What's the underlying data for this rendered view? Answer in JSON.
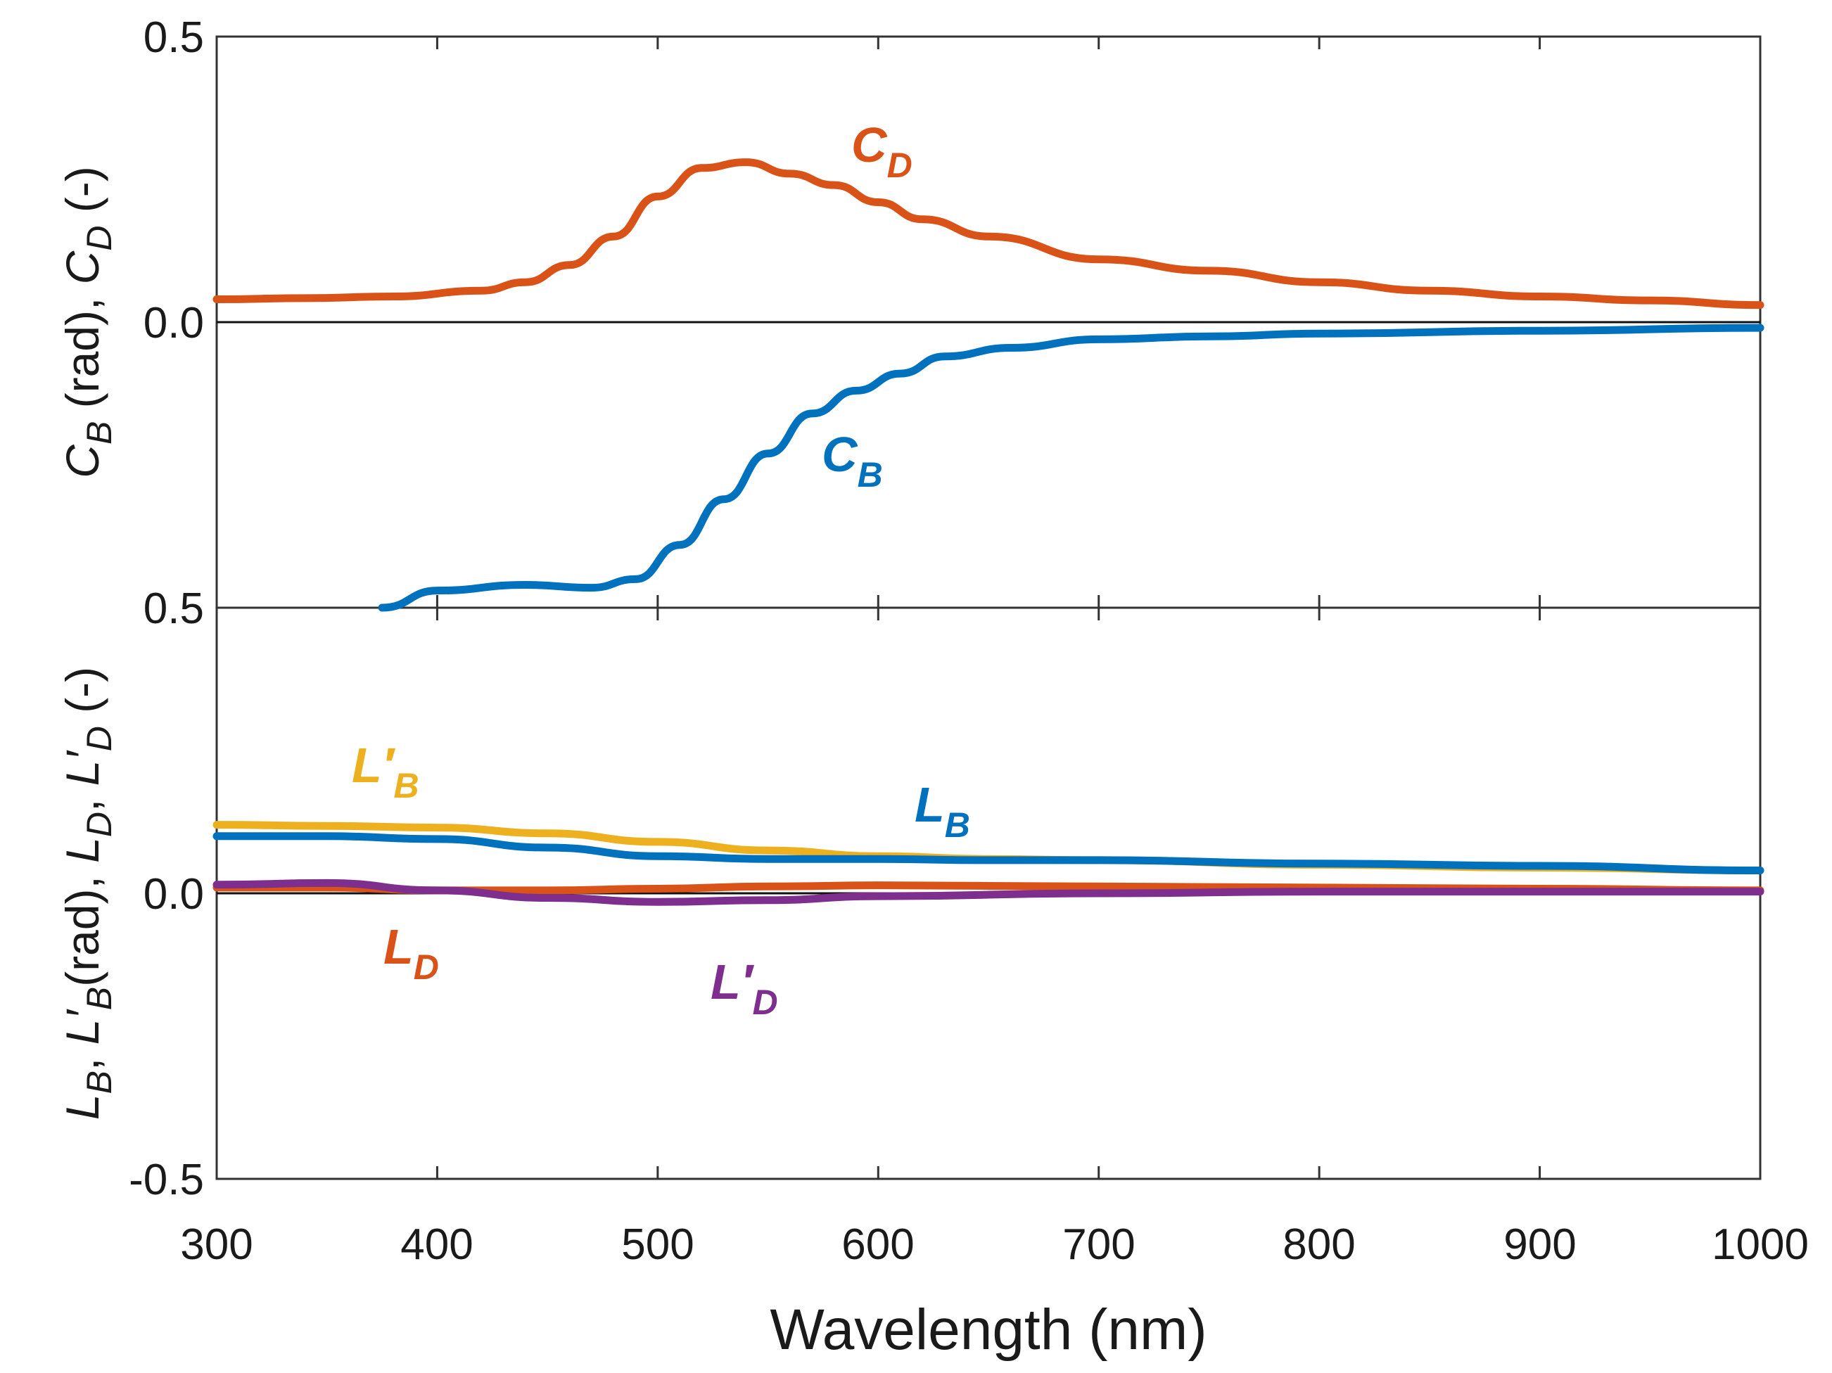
{
  "chart_data": {
    "type": "line",
    "xlabel": "Wavelength (nm)",
    "xlim": [
      300,
      1000
    ],
    "x_ticks": [
      "300",
      "400",
      "500",
      "600",
      "700",
      "800",
      "900",
      "1000"
    ],
    "panels": [
      {
        "name": "top",
        "ylabel": {
          "c": "C",
          "b": "B",
          "rad": " (rad), ",
          "d": "D",
          "dimless": " (-)"
        },
        "ylim": [
          -0.5,
          0.5
        ],
        "y_ticks": [
          "0.5",
          "0.0"
        ],
        "series": [
          {
            "name": "C_D",
            "label": {
              "main": "C",
              "sub": "D"
            },
            "color": "#D95319",
            "x": [
              300,
              340,
              380,
              420,
              440,
              460,
              480,
              500,
              520,
              540,
              560,
              580,
              600,
              620,
              650,
              700,
              750,
              800,
              850,
              900,
              950,
              1000
            ],
            "y": [
              0.04,
              0.042,
              0.045,
              0.055,
              0.07,
              0.1,
              0.15,
              0.22,
              0.27,
              0.28,
              0.26,
              0.24,
              0.21,
              0.18,
              0.15,
              0.11,
              0.09,
              0.07,
              0.055,
              0.045,
              0.038,
              0.03
            ]
          },
          {
            "name": "C_B",
            "label": {
              "main": "C",
              "sub": "B"
            },
            "color": "#0072BD",
            "x": [
              375,
              400,
              440,
              470,
              490,
              510,
              530,
              550,
              570,
              590,
              610,
              630,
              660,
              700,
              750,
              800,
              900,
              1000
            ],
            "y": [
              -0.5,
              -0.47,
              -0.46,
              -0.465,
              -0.45,
              -0.39,
              -0.31,
              -0.23,
              -0.16,
              -0.12,
              -0.09,
              -0.06,
              -0.045,
              -0.03,
              -0.025,
              -0.02,
              -0.015,
              -0.01
            ]
          }
        ]
      },
      {
        "name": "bottom",
        "ylabel": {
          "l": "L",
          "b": "B",
          "comma": ", ",
          "lprime": "L′",
          "rad": "(rad),  ",
          "dprime": "D",
          "sep": ",  ",
          "d": "D",
          "dimless": " (-)"
        },
        "ylim": [
          -0.5,
          0.5
        ],
        "y_ticks": [
          "0.5",
          "0.0",
          "-0.5"
        ],
        "series": [
          {
            "name": "L'_B",
            "label": {
              "main": "L′",
              "sub": "B"
            },
            "color": "#EDB120",
            "x": [
              300,
              350,
              400,
              450,
              500,
              550,
              600,
              650,
              700,
              800,
              900,
              1000
            ],
            "y": [
              0.12,
              0.118,
              0.115,
              0.105,
              0.09,
              0.075,
              0.065,
              0.06,
              0.058,
              0.05,
              0.045,
              0.04
            ]
          },
          {
            "name": "L_B",
            "label": {
              "main": "L",
              "sub": "B"
            },
            "color": "#0072BD",
            "x": [
              300,
              350,
              400,
              450,
              500,
              550,
              600,
              650,
              700,
              800,
              900,
              1000
            ],
            "y": [
              0.1,
              0.1,
              0.095,
              0.08,
              0.065,
              0.06,
              0.06,
              0.058,
              0.058,
              0.052,
              0.048,
              0.04
            ]
          },
          {
            "name": "L_D",
            "label": {
              "main": "L",
              "sub": "D"
            },
            "color": "#D95319",
            "x": [
              300,
              350,
              400,
              450,
              500,
              550,
              600,
              700,
              800,
              900,
              1000
            ],
            "y": [
              0.01,
              0.01,
              0.005,
              0.005,
              0.008,
              0.012,
              0.014,
              0.012,
              0.01,
              0.008,
              0.005
            ]
          },
          {
            "name": "L'_D",
            "label": {
              "main": "L′",
              "sub": "D"
            },
            "color": "#7E2F8E",
            "x": [
              300,
              350,
              400,
              450,
              500,
              550,
              600,
              700,
              800,
              900,
              1000
            ],
            "y": [
              0.015,
              0.018,
              0.005,
              -0.008,
              -0.015,
              -0.012,
              -0.005,
              0.0,
              0.003,
              0.003,
              0.003
            ]
          }
        ]
      }
    ]
  }
}
